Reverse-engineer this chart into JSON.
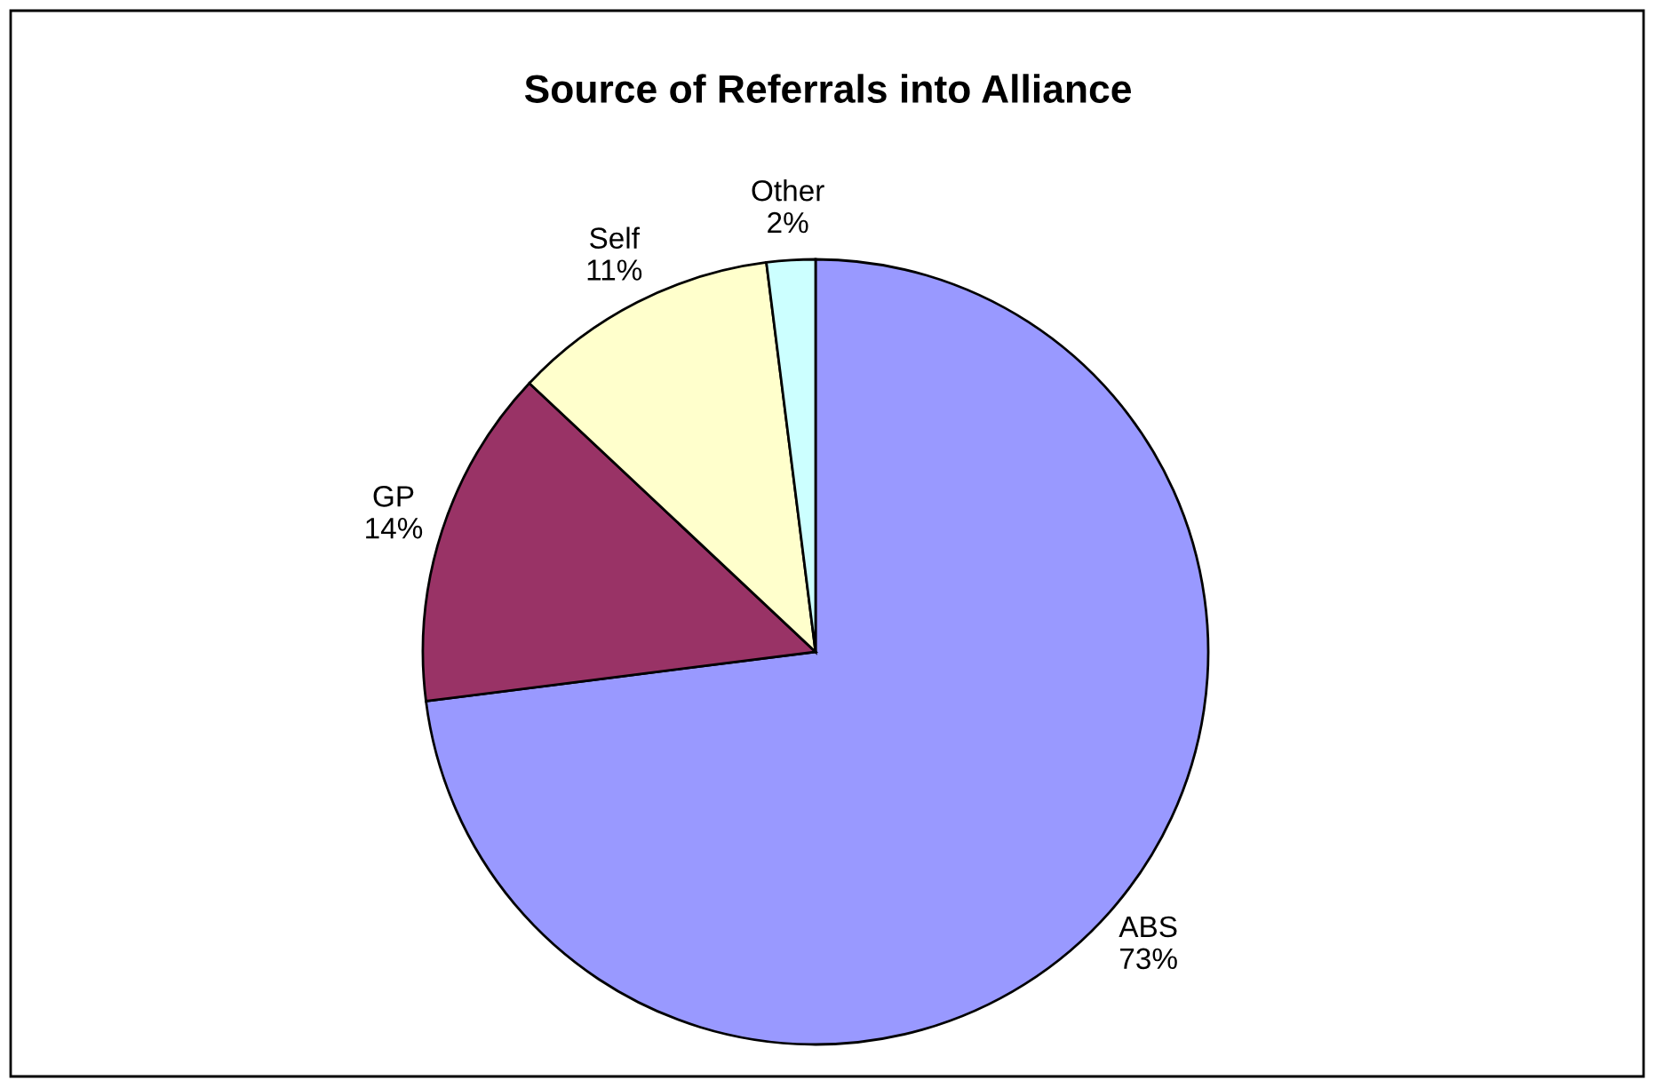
{
  "chart_data": {
    "type": "pie",
    "title": "Source of Referrals into Alliance",
    "categories": [
      "ABS",
      "GP",
      "Self",
      "Other"
    ],
    "values": [
      73,
      14,
      11,
      2
    ],
    "colors": [
      "#9999ff",
      "#993366",
      "#ffffcc",
      "#ccffff"
    ],
    "value_labels": [
      "73%",
      "14%",
      "11%",
      "2%"
    ]
  }
}
